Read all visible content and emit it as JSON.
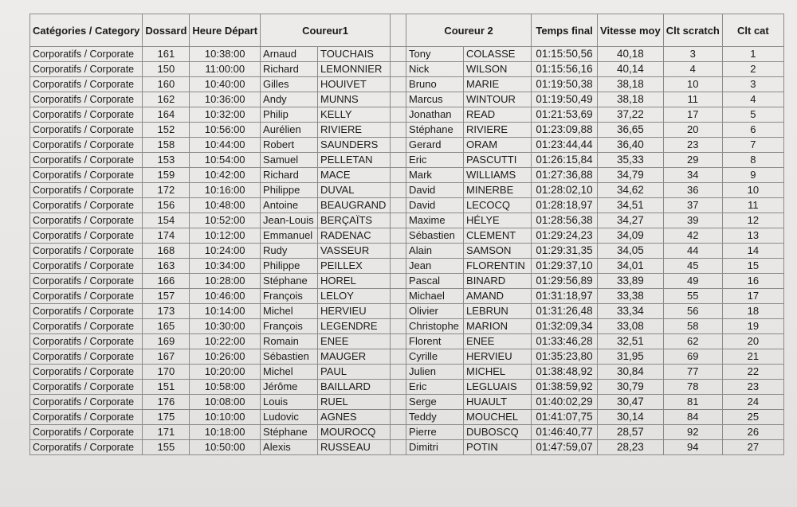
{
  "headers": {
    "category": "Catégories / Category",
    "dossard": "Dossard",
    "heure": "Heure Départ",
    "coureur1": "Coureur1",
    "coureur2": "Coureur 2",
    "temps": "Temps final",
    "vitesse": "Vitesse moy",
    "scratch": "Clt scratch",
    "cltcat": "Clt cat"
  },
  "rows": [
    [
      "Corporatifs / Corporate",
      "161",
      "10:38:00",
      "Arnaud",
      "TOUCHAIS",
      "Tony",
      "COLASSE",
      "01:15:50,56",
      "40,18",
      "3",
      "1"
    ],
    [
      "Corporatifs / Corporate",
      "150",
      "11:00:00",
      "Richard",
      "LEMONNIER",
      "Nick",
      "WILSON",
      "01:15:56,16",
      "40,14",
      "4",
      "2"
    ],
    [
      "Corporatifs / Corporate",
      "160",
      "10:40:00",
      "Gilles",
      "HOUIVET",
      "Bruno",
      "MARIE",
      "01:19:50,38",
      "38,18",
      "10",
      "3"
    ],
    [
      "Corporatifs / Corporate",
      "162",
      "10:36:00",
      "Andy",
      "MUNNS",
      "Marcus",
      "WINTOUR",
      "01:19:50,49",
      "38,18",
      "11",
      "4"
    ],
    [
      "Corporatifs / Corporate",
      "164",
      "10:32:00",
      "Philip",
      "KELLY",
      "Jonathan",
      "READ",
      "01:21:53,69",
      "37,22",
      "17",
      "5"
    ],
    [
      "Corporatifs / Corporate",
      "152",
      "10:56:00",
      "Aurélien",
      "RIVIERE",
      "Stéphane",
      "RIVIERE",
      "01:23:09,88",
      "36,65",
      "20",
      "6"
    ],
    [
      "Corporatifs / Corporate",
      "158",
      "10:44:00",
      "Robert",
      "SAUNDERS",
      "Gerard",
      "ORAM",
      "01:23:44,44",
      "36,40",
      "23",
      "7"
    ],
    [
      "Corporatifs / Corporate",
      "153",
      "10:54:00",
      "Samuel",
      "PELLETAN",
      "Eric",
      "PASCUTTI",
      "01:26:15,84",
      "35,33",
      "29",
      "8"
    ],
    [
      "Corporatifs / Corporate",
      "159",
      "10:42:00",
      "Richard",
      "MACE",
      "Mark",
      "WILLIAMS",
      "01:27:36,88",
      "34,79",
      "34",
      "9"
    ],
    [
      "Corporatifs / Corporate",
      "172",
      "10:16:00",
      "Philippe",
      "DUVAL",
      "David",
      "MINERBE",
      "01:28:02,10",
      "34,62",
      "36",
      "10"
    ],
    [
      "Corporatifs / Corporate",
      "156",
      "10:48:00",
      "Antoine",
      "BEAUGRAND",
      "David",
      "LECOCQ",
      "01:28:18,97",
      "34,51",
      "37",
      "11"
    ],
    [
      "Corporatifs / Corporate",
      "154",
      "10:52:00",
      "Jean-Louis",
      "BERÇAÏTS",
      "Maxime",
      "HÉLYE",
      "01:28:56,38",
      "34,27",
      "39",
      "12"
    ],
    [
      "Corporatifs / Corporate",
      "174",
      "10:12:00",
      "Emmanuel",
      "RADENAC",
      "Sébastien",
      "CLEMENT",
      "01:29:24,23",
      "34,09",
      "42",
      "13"
    ],
    [
      "Corporatifs / Corporate",
      "168",
      "10:24:00",
      "Rudy",
      "VASSEUR",
      "Alain",
      "SAMSON",
      "01:29:31,35",
      "34,05",
      "44",
      "14"
    ],
    [
      "Corporatifs / Corporate",
      "163",
      "10:34:00",
      "Philippe",
      "PEILLEX",
      "Jean",
      "FLORENTIN",
      "01:29:37,10",
      "34,01",
      "45",
      "15"
    ],
    [
      "Corporatifs / Corporate",
      "166",
      "10:28:00",
      "Stéphane",
      "HOREL",
      "Pascal",
      "BINARD",
      "01:29:56,89",
      "33,89",
      "49",
      "16"
    ],
    [
      "Corporatifs / Corporate",
      "157",
      "10:46:00",
      "François",
      "LELOY",
      "Michael",
      "AMAND",
      "01:31:18,97",
      "33,38",
      "55",
      "17"
    ],
    [
      "Corporatifs / Corporate",
      "173",
      "10:14:00",
      "Michel",
      "HERVIEU",
      "Olivier",
      "LEBRUN",
      "01:31:26,48",
      "33,34",
      "56",
      "18"
    ],
    [
      "Corporatifs / Corporate",
      "165",
      "10:30:00",
      "François",
      "LEGENDRE",
      "Christophe",
      "MARION",
      "01:32:09,34",
      "33,08",
      "58",
      "19"
    ],
    [
      "Corporatifs / Corporate",
      "169",
      "10:22:00",
      "Romain",
      "ENEE",
      "Florent",
      "ENEE",
      "01:33:46,28",
      "32,51",
      "62",
      "20"
    ],
    [
      "Corporatifs / Corporate",
      "167",
      "10:26:00",
      "Sébastien",
      "MAUGER",
      "Cyrille",
      "HERVIEU",
      "01:35:23,80",
      "31,95",
      "69",
      "21"
    ],
    [
      "Corporatifs / Corporate",
      "170",
      "10:20:00",
      "Michel",
      "PAUL",
      "Julien",
      "MICHEL",
      "01:38:48,92",
      "30,84",
      "77",
      "22"
    ],
    [
      "Corporatifs / Corporate",
      "151",
      "10:58:00",
      "Jérôme",
      "BAILLARD",
      "Eric",
      "LEGLUAIS",
      "01:38:59,92",
      "30,79",
      "78",
      "23"
    ],
    [
      "Corporatifs / Corporate",
      "176",
      "10:08:00",
      "Louis",
      "RUEL",
      "Serge",
      "HUAULT",
      "01:40:02,29",
      "30,47",
      "81",
      "24"
    ],
    [
      "Corporatifs / Corporate",
      "175",
      "10:10:00",
      "Ludovic",
      "AGNES",
      "Teddy",
      "MOUCHEL",
      "01:41:07,75",
      "30,14",
      "84",
      "25"
    ],
    [
      "Corporatifs / Corporate",
      "171",
      "10:18:00",
      "Stéphane",
      "MOUROCQ",
      "Pierre",
      "DUBOSCQ",
      "01:46:40,77",
      "28,57",
      "92",
      "26"
    ],
    [
      "Corporatifs / Corporate",
      "155",
      "10:50:00",
      "Alexis",
      "RUSSEAU",
      "Dimitri",
      "POTIN",
      "01:47:59,07",
      "28,23",
      "94",
      "27"
    ]
  ]
}
